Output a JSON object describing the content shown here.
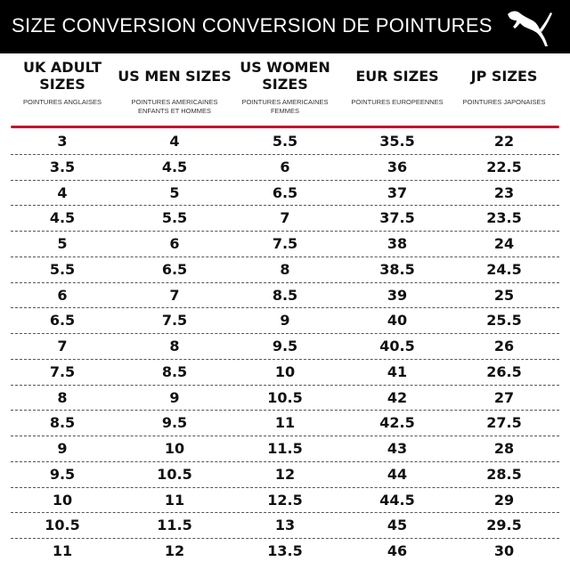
{
  "header": {
    "title": "SIZE CONVERSION CONVERSION DE POINTURES",
    "logo": "PUMA cat logo"
  },
  "columns": [
    {
      "main": "UK ADULT SIZES",
      "sub": "POINTURES ANGLAISES"
    },
    {
      "main": "US MEN SIZES",
      "sub": "POINTURES AMERICAINES ENFANTS ET HOMMES"
    },
    {
      "main": "US WOMEN SIZES",
      "sub": "POINTURES AMERICAINES FEMMES"
    },
    {
      "main": "EUR SIZES",
      "sub": "POINTURES EUROPEENNES"
    },
    {
      "main": "JP SIZES",
      "sub": "POINTURES JAPONAISES"
    }
  ],
  "rows": [
    [
      "3",
      "4",
      "5.5",
      "35.5",
      "22"
    ],
    [
      "3.5",
      "4.5",
      "6",
      "36",
      "22.5"
    ],
    [
      "4",
      "5",
      "6.5",
      "37",
      "23"
    ],
    [
      "4.5",
      "5.5",
      "7",
      "37.5",
      "23.5"
    ],
    [
      "5",
      "6",
      "7.5",
      "38",
      "24"
    ],
    [
      "5.5",
      "6.5",
      "8",
      "38.5",
      "24.5"
    ],
    [
      "6",
      "7",
      "8.5",
      "39",
      "25"
    ],
    [
      "6.5",
      "7.5",
      "9",
      "40",
      "25.5"
    ],
    [
      "7",
      "8",
      "9.5",
      "40.5",
      "26"
    ],
    [
      "7.5",
      "8.5",
      "10",
      "41",
      "26.5"
    ],
    [
      "8",
      "9",
      "10.5",
      "42",
      "27"
    ],
    [
      "8.5",
      "9.5",
      "11",
      "42.5",
      "27.5"
    ],
    [
      "9",
      "10",
      "11.5",
      "43",
      "28"
    ],
    [
      "9.5",
      "10.5",
      "12",
      "44",
      "28.5"
    ],
    [
      "10",
      "11",
      "12.5",
      "44.5",
      "29"
    ],
    [
      "10.5",
      "11.5",
      "13",
      "45",
      "29.5"
    ],
    [
      "11",
      "12",
      "13.5",
      "46",
      "30"
    ]
  ],
  "colors": {
    "header_bg": "#000000",
    "accent_line": "#c8102e"
  }
}
